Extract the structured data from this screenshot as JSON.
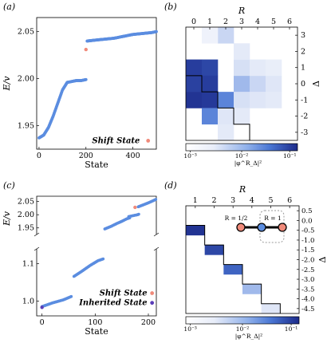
{
  "panels": {
    "a": "(a)",
    "b": "(b)",
    "c": "(c)",
    "d": "(d)"
  },
  "chart_data": [
    {
      "panel": "a",
      "type": "scatter",
      "xlabel": "State",
      "ylabel": "E/v",
      "xlim": [
        -10,
        500
      ],
      "ylim": [
        1.925,
        2.065
      ],
      "xticks": [
        "0",
        "200",
        "400"
      ],
      "yticks": [
        "1.95",
        "2.00",
        "2.05"
      ],
      "legend": [
        {
          "label": "Shift State",
          "color": "#f08a7a"
        }
      ],
      "colors": {
        "series": "#5b8de0",
        "shift": "#f08a7a"
      },
      "series": [
        {
          "name": "",
          "points": [
            [
              0,
              1.937
            ],
            [
              20,
              1.94
            ],
            [
              40,
              1.948
            ],
            [
              60,
              1.96
            ],
            [
              80,
              1.974
            ],
            [
              100,
              1.988
            ],
            [
              120,
              1.996
            ],
            [
              140,
              1.997
            ],
            [
              160,
              1.998
            ],
            [
              180,
              1.998
            ],
            [
              200,
              1.999
            ]
          ]
        },
        {
          "name": "",
          "points": [
            [
              205,
              2.04
            ],
            [
              240,
              2.041
            ],
            [
              280,
              2.042
            ],
            [
              320,
              2.043
            ],
            [
              360,
              2.045
            ],
            [
              400,
              2.047
            ],
            [
              440,
              2.048
            ],
            [
              480,
              2.049
            ],
            [
              500,
              2.05
            ]
          ]
        }
      ],
      "shift_states": [
        [
          200,
          2.031
        ],
        [
          455,
          1.934
        ]
      ]
    },
    {
      "panel": "b",
      "type": "heatmap",
      "xlabel": "R",
      "ylabel": "Δ",
      "xticks": [
        "0",
        "1",
        "2",
        "3",
        "4",
        "5",
        "6"
      ],
      "yticks": [
        "3",
        "2",
        "1",
        "0",
        "-1",
        "-2",
        "-3"
      ],
      "colorbar_label": "|φ^R_Δ|²",
      "colorbar_ticks": [
        "10⁻³",
        "10⁻²",
        "10⁻¹"
      ],
      "colors": {
        "low": "#ffffff",
        "mid": "#4a77d4",
        "high": "#1a2a8a"
      },
      "cells": [
        {
          "r": 0,
          "d": 1,
          "v": 0.9
        },
        {
          "r": 0,
          "d": 0,
          "v": 0.88
        },
        {
          "r": 0,
          "d": -1,
          "v": 0.95
        },
        {
          "r": 1,
          "d": 1,
          "v": 0.85
        },
        {
          "r": 1,
          "d": 0,
          "v": 0.9
        },
        {
          "r": 1,
          "d": -1,
          "v": 0.92
        },
        {
          "r": 1,
          "d": -2,
          "v": 0.55
        },
        {
          "r": 2,
          "d": -1,
          "v": 0.55
        },
        {
          "r": 2,
          "d": -2,
          "v": 0.12
        },
        {
          "r": 2,
          "d": -3,
          "v": 0.1
        },
        {
          "r": 3,
          "d": 0,
          "v": 0.35
        },
        {
          "r": 3,
          "d": 1,
          "v": 0.15
        },
        {
          "r": 3,
          "d": 2,
          "v": 0.1
        },
        {
          "r": 3,
          "d": -1,
          "v": 0.15
        },
        {
          "r": 3,
          "d": -2,
          "v": 0.1
        },
        {
          "r": 4,
          "d": 0,
          "v": 0.2
        },
        {
          "r": 4,
          "d": 1,
          "v": 0.1
        },
        {
          "r": 4,
          "d": -1,
          "v": 0.12
        },
        {
          "r": 5,
          "d": 0,
          "v": 0.12
        },
        {
          "r": 5,
          "d": -1,
          "v": 0.1
        },
        {
          "r": 5,
          "d": 1,
          "v": 0.08
        },
        {
          "r": 2,
          "d": 3,
          "v": 0.2
        },
        {
          "r": 1,
          "d": 3,
          "v": 0.06
        }
      ]
    },
    {
      "panel": "c",
      "type": "scatter",
      "xlabel": "State",
      "ylabel": "E/v",
      "xlim": [
        -10,
        215
      ],
      "upper_ylim": [
        1.925,
        2.07
      ],
      "lower_ylim": [
        0.96,
        1.14
      ],
      "xticks": [
        "0",
        "100",
        "200"
      ],
      "upper_yticks": [
        "1.95",
        "2.00",
        "2.05"
      ],
      "lower_yticks": [
        "1.0",
        "1.1"
      ],
      "legend": [
        {
          "label": "Shift State",
          "color": "#f08a7a"
        },
        {
          "label": "Inherited State",
          "color": "#5a3db8"
        }
      ],
      "colors": {
        "series": "#5b8de0",
        "shift": "#f08a7a",
        "inherited": "#5a3db8"
      },
      "upper_series": [
        {
          "name": "",
          "points": [
            [
              118,
              1.946
            ],
            [
              130,
              1.956
            ],
            [
              140,
              1.966
            ],
            [
              150,
              1.975
            ],
            [
              160,
              1.985
            ],
            [
              165,
              1.988
            ]
          ]
        },
        {
          "name": "",
          "points": [
            [
              163,
              1.993
            ],
            [
              175,
              1.998
            ],
            [
              180,
              2.0
            ],
            [
              182,
              2.002
            ]
          ]
        },
        {
          "name": "",
          "points": [
            [
              181,
              2.03
            ],
            [
              190,
              2.037
            ],
            [
              200,
              2.045
            ],
            [
              210,
              2.054
            ],
            [
              214,
              2.058
            ]
          ]
        }
      ],
      "lower_series": [
        {
          "name": "",
          "points": [
            [
              0,
              0.985
            ],
            [
              20,
              0.995
            ],
            [
              40,
              1.003
            ],
            [
              55,
              1.012
            ]
          ]
        },
        {
          "name": "",
          "points": [
            [
              60,
              1.066
            ],
            [
              75,
              1.08
            ],
            [
              90,
              1.095
            ],
            [
              105,
              1.108
            ],
            [
              115,
              1.113
            ]
          ]
        }
      ],
      "shift_states": [
        [
          175,
          2.028
        ],
        [
          207,
          1.021
        ]
      ],
      "inherited_states": [
        [
          0,
          0.983
        ],
        [
          207,
          0.995
        ]
      ]
    },
    {
      "panel": "d",
      "type": "heatmap",
      "xlabel": "R",
      "ylabel": "Δ",
      "xticks": [
        "1",
        "2",
        "3",
        "4",
        "5",
        "6"
      ],
      "yticks": [
        "0.5",
        "0.0",
        "-0.5",
        "-1.0",
        "-1.5",
        "-2.0",
        "-2.5",
        "-3.0",
        "-3.5",
        "-4.0",
        "-4.5"
      ],
      "colorbar_label": "|φ^R_Δ|²",
      "colorbar_ticks": [
        "10⁻³",
        "10⁻²",
        "10⁻¹"
      ],
      "inset": {
        "label_half": "R = 1/2",
        "label_one": "R = 1"
      },
      "colors": {
        "low": "#ffffff",
        "high": "#1a2a8a"
      },
      "cells": [
        {
          "r": 1,
          "d": -0.5,
          "v": 0.95
        },
        {
          "r": 2,
          "d": -1.5,
          "v": 0.85
        },
        {
          "r": 3,
          "d": -2.5,
          "v": 0.7
        },
        {
          "r": 4,
          "d": -3.5,
          "v": 0.35
        },
        {
          "r": 5,
          "d": -4.5,
          "v": 0.12
        }
      ]
    }
  ]
}
